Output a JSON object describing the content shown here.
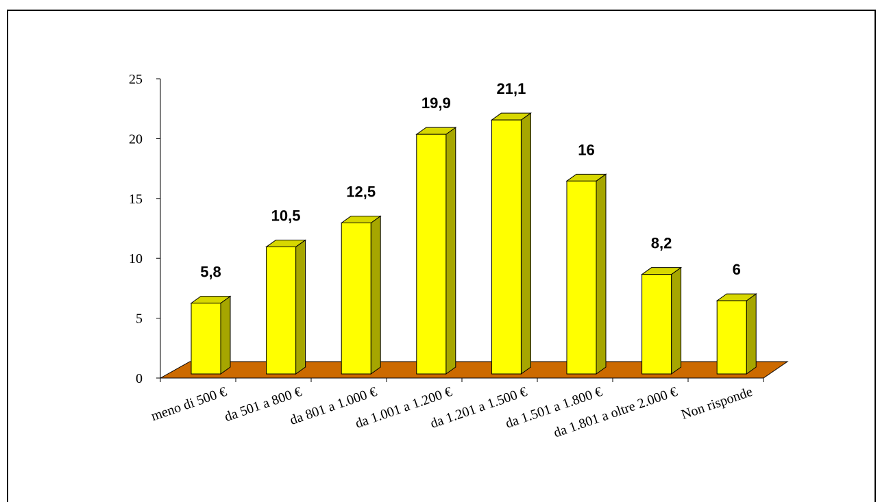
{
  "chart_data": {
    "type": "bar",
    "categories": [
      "meno di 500 €",
      "da 501 a 800 €",
      "da 801 a 1.000 €",
      "da 1.001 a 1.200 €",
      "da 1.201 a 1.500 €",
      "da 1.501 a 1.800 €",
      "da 1.801 a oltre 2.000 €",
      "Non risponde"
    ],
    "values": [
      5.8,
      10.5,
      12.5,
      19.9,
      21.1,
      16,
      8.2,
      6
    ],
    "value_labels": [
      "5,8",
      "10,5",
      "12,5",
      "19,9",
      "21,1",
      "16",
      "8,2",
      "6"
    ],
    "yticks": [
      "0",
      "5",
      "10",
      "15",
      "20",
      "25"
    ],
    "ylim": [
      0,
      25
    ],
    "title": "",
    "xlabel": "",
    "ylabel": "",
    "grid": false,
    "legend": "none",
    "style": "3d",
    "colors": {
      "bar_front": "#ffff00",
      "bar_side": "#a6a600",
      "bar_top": "#d8d800",
      "floor": "#cc6a00",
      "outline": "#000000"
    }
  }
}
